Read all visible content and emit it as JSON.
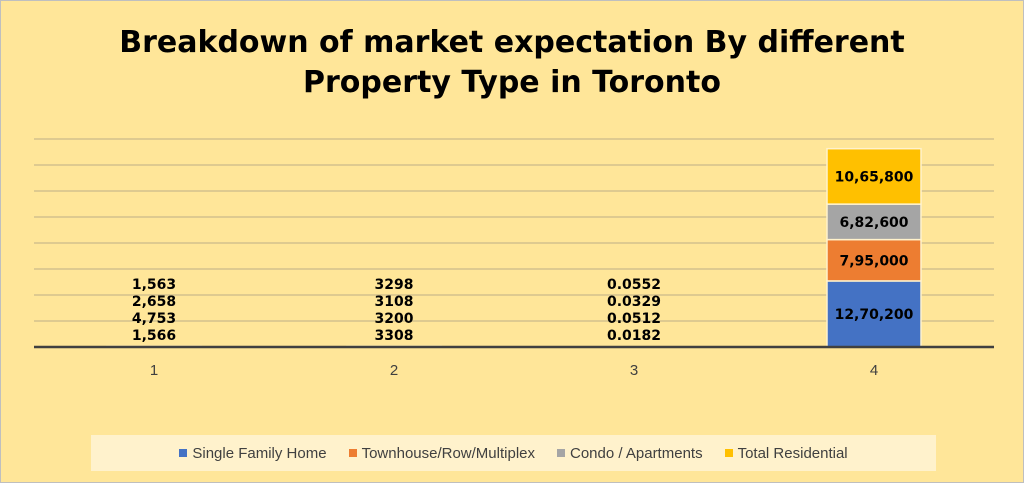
{
  "chart_data": {
    "type": "bar",
    "stacked": true,
    "title": "Breakdown of market expectation By different Property Type in Toronto",
    "title_lines": [
      "Breakdown of market expectation By different",
      "Property Type in Toronto"
    ],
    "categories": [
      "1",
      "2",
      "3",
      "4"
    ],
    "ylim": [
      0,
      4000000
    ],
    "y_grid_step": 500000,
    "grid": true,
    "y_tick_labels_shown": false,
    "legend_position": "bottom",
    "series": [
      {
        "name": "Single Family Home",
        "color": "#4472c4",
        "values": [
          1566,
          3308,
          0.0182,
          1270200
        ],
        "labels": [
          "1,566",
          "3308",
          "0.0182",
          "12,70,200"
        ]
      },
      {
        "name": "Townhouse/Row/Multiplex",
        "color": "#ed7d31",
        "values": [
          4753,
          3200,
          0.0512,
          795000
        ],
        "labels": [
          "4,753",
          "3200",
          "0.0512",
          "7,95,000"
        ]
      },
      {
        "name": "Condo / Apartments",
        "color": "#a5a5a5",
        "values": [
          2658,
          3108,
          0.0329,
          682600
        ],
        "labels": [
          "2,658",
          "3108",
          "0.0329",
          "6,82,600"
        ]
      },
      {
        "name": "Total Residential",
        "color": "#ffc000",
        "values": [
          1563,
          3298,
          0.0552,
          1065800
        ],
        "labels": [
          "1,563",
          "3298",
          "0.0552",
          "10,65,800"
        ]
      }
    ]
  }
}
